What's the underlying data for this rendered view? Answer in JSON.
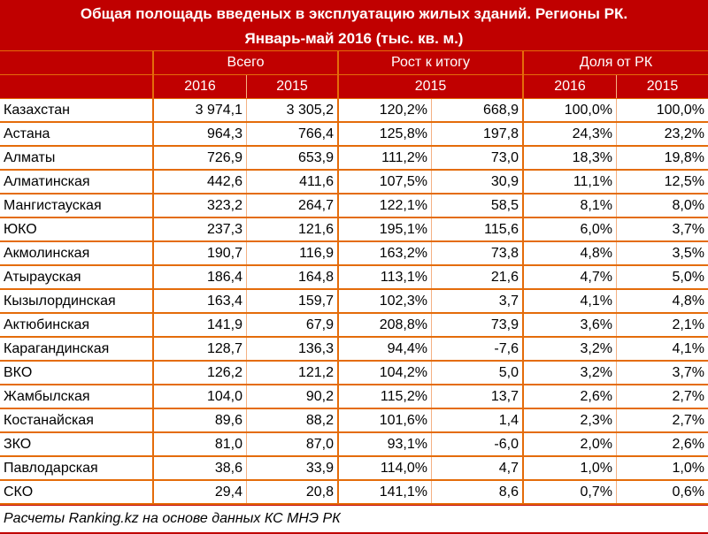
{
  "title_line1": "Общая полощадь введеных в эксплуатацию жилых зданий. Регионы РК.",
  "title_line2": "Январь-май 2016 (тыс. кв. м.)",
  "groups": [
    "Всего",
    "Рост к итогу",
    "Доля от РК"
  ],
  "years": [
    "2016",
    "2015",
    "2015",
    "2016",
    "2015"
  ],
  "rows": [
    [
      "Казахстан",
      "3 974,1",
      "3 305,2",
      "120,2%",
      "668,9",
      "100,0%",
      "100,0%"
    ],
    [
      "Астана",
      "964,3",
      "766,4",
      "125,8%",
      "197,8",
      "24,3%",
      "23,2%"
    ],
    [
      "Алматы",
      "726,9",
      "653,9",
      "111,2%",
      "73,0",
      "18,3%",
      "19,8%"
    ],
    [
      "Алматинская",
      "442,6",
      "411,6",
      "107,5%",
      "30,9",
      "11,1%",
      "12,5%"
    ],
    [
      "Мангистауская",
      "323,2",
      "264,7",
      "122,1%",
      "58,5",
      "8,1%",
      "8,0%"
    ],
    [
      "ЮКО",
      "237,3",
      "121,6",
      "195,1%",
      "115,6",
      "6,0%",
      "3,7%"
    ],
    [
      "Акмолинская",
      "190,7",
      "116,9",
      "163,2%",
      "73,8",
      "4,8%",
      "3,5%"
    ],
    [
      "Атырауская",
      "186,4",
      "164,8",
      "113,1%",
      "21,6",
      "4,7%",
      "5,0%"
    ],
    [
      "Кызылординская",
      "163,4",
      "159,7",
      "102,3%",
      "3,7",
      "4,1%",
      "4,8%"
    ],
    [
      "Актюбинская",
      "141,9",
      "67,9",
      "208,8%",
      "73,9",
      "3,6%",
      "2,1%"
    ],
    [
      "Карагандинская",
      "128,7",
      "136,3",
      "94,4%",
      "-7,6",
      "3,2%",
      "4,1%"
    ],
    [
      "ВКО",
      "126,2",
      "121,2",
      "104,2%",
      "5,0",
      "3,2%",
      "3,7%"
    ],
    [
      "Жамбылская",
      "104,0",
      "90,2",
      "115,2%",
      "13,7",
      "2,6%",
      "2,7%"
    ],
    [
      "Костанайская",
      "89,6",
      "88,2",
      "101,6%",
      "1,4",
      "2,3%",
      "2,7%"
    ],
    [
      "ЗКО",
      "81,0",
      "87,0",
      "93,1%",
      "-6,0",
      "2,0%",
      "2,6%"
    ],
    [
      "Павлодарская",
      "38,6",
      "33,9",
      "114,0%",
      "4,7",
      "1,0%",
      "1,0%"
    ],
    [
      "СКО",
      "29,4",
      "20,8",
      "141,1%",
      "8,6",
      "0,7%",
      "0,6%"
    ]
  ],
  "footer": "Расчеты Ranking.kz на основе данных КС МНЭ РК"
}
